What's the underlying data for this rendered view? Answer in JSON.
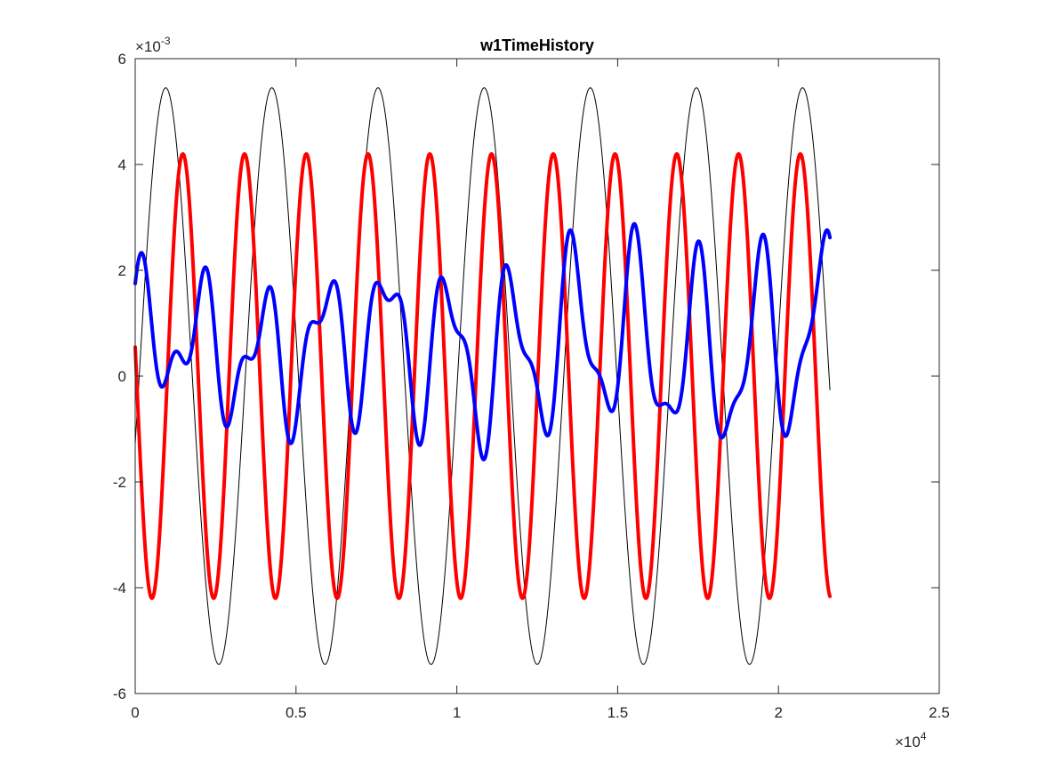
{
  "chart_data": {
    "type": "line",
    "title": "w1TimeHistory",
    "xlabel": "",
    "ylabel": "",
    "xlim": [
      0,
      25000
    ],
    "ylim": [
      -0.006,
      0.006
    ],
    "x_ticks": [
      0,
      5000,
      10000,
      15000,
      20000,
      25000
    ],
    "y_ticks": [
      -0.006,
      -0.004,
      -0.002,
      0,
      0.002,
      0.004,
      0.006
    ],
    "x_tick_labels": [
      "0",
      "0.5",
      "1",
      "1.5",
      "2",
      "2.5"
    ],
    "y_tick_labels": [
      "-6",
      "-4",
      "-2",
      "0",
      "2",
      "4",
      "6"
    ],
    "x_exponent": {
      "base": "×10",
      "power": "4"
    },
    "y_exponent": {
      "base": "×10",
      "power": "-3"
    },
    "grid": false,
    "box": true,
    "series": [
      {
        "color": "#000000",
        "line_width": "thin",
        "x_start": 0,
        "x_end": 21600,
        "components": [
          {
            "amplitude": 0.00545,
            "period": 3300,
            "x_of_peak": 950
          }
        ],
        "offset": 0
      },
      {
        "color": "#ff0000",
        "line_width": "thick",
        "x_start": 0,
        "x_end": 21600,
        "components": [
          {
            "amplitude": 0.0042,
            "period": 1920,
            "x_of_peak": 1480
          }
        ],
        "offset": 0
      },
      {
        "color": "#0000ff",
        "line_width": "thick",
        "x_start": 0,
        "x_end": 21600,
        "components": [
          {
            "amplitude": 0.00125,
            "period": 1920,
            "x_of_peak": 240
          },
          {
            "amplitude": 0.00062,
            "period": 1020,
            "x_of_peak": 200
          },
          {
            "amplitude": 0.0004,
            "period": 2000,
            "x_of_peak": 1400
          },
          {
            "amplitude": 0.00025,
            "period": 7000,
            "x_of_peak": 400
          }
        ],
        "offset": 0.00055
      }
    ]
  }
}
